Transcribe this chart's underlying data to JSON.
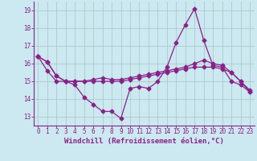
{
  "background_color": "#cce8f0",
  "grid_color": "#aacccc",
  "line_color": "#882288",
  "xlabel": "Windchill (Refroidissement éolien,°C)",
  "xlabel_fontsize": 6.5,
  "tick_fontsize": 5.5,
  "ylim": [
    12.5,
    19.5
  ],
  "xlim": [
    -0.5,
    23.5
  ],
  "yticks": [
    13,
    14,
    15,
    16,
    17,
    18,
    19
  ],
  "xticks": [
    0,
    1,
    2,
    3,
    4,
    5,
    6,
    7,
    8,
    9,
    10,
    11,
    12,
    13,
    14,
    15,
    16,
    17,
    18,
    19,
    20,
    21,
    22,
    23
  ],
  "series1": [
    16.4,
    16.1,
    15.3,
    15.0,
    14.8,
    14.1,
    13.7,
    13.3,
    13.3,
    12.9,
    14.6,
    14.7,
    14.6,
    15.0,
    15.8,
    17.2,
    18.2,
    19.1,
    17.3,
    15.9,
    15.8,
    15.0,
    14.8,
    14.4
  ],
  "series2": [
    16.4,
    16.1,
    15.3,
    15.0,
    15.0,
    15.0,
    15.0,
    15.0,
    15.0,
    15.0,
    15.1,
    15.2,
    15.3,
    15.4,
    15.5,
    15.6,
    15.7,
    15.8,
    15.8,
    15.8,
    15.7,
    15.5,
    15.0,
    14.5
  ],
  "series3": [
    16.4,
    15.6,
    15.0,
    15.0,
    15.0,
    15.0,
    15.1,
    15.2,
    15.1,
    15.1,
    15.2,
    15.3,
    15.4,
    15.5,
    15.6,
    15.7,
    15.8,
    16.0,
    16.2,
    16.0,
    15.9,
    15.5,
    15.0,
    14.4
  ]
}
